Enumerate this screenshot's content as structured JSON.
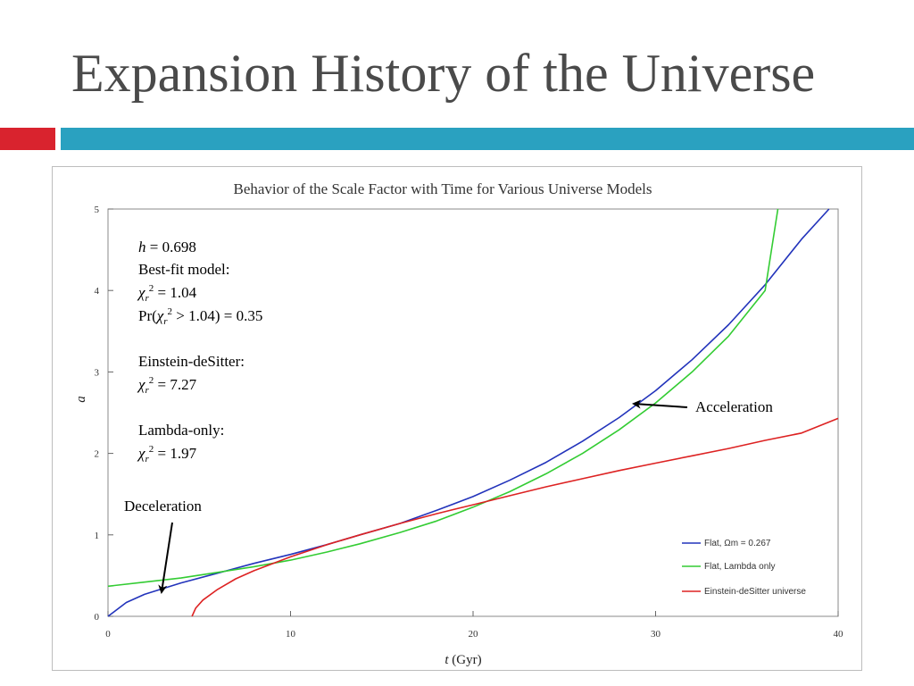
{
  "slide": {
    "title": "Expansion History of the Universe",
    "accent_red": "#d9232e",
    "accent_blue": "#2aa1c0"
  },
  "chart_data": {
    "type": "line",
    "title": "Behavior of the Scale Factor with Time for Various Universe Models",
    "xlabel_var": "t",
    "xlabel_unit": "(Gyr)",
    "ylabel": "a",
    "xlim": [
      0,
      40
    ],
    "ylim": [
      0,
      5
    ],
    "xticks": [
      0,
      10,
      20,
      30,
      40
    ],
    "yticks": [
      0,
      1,
      2,
      3,
      4,
      5
    ],
    "grid": false,
    "legend_position": "bottom-right",
    "series": [
      {
        "name": "Flat, Ωm = 0.267",
        "color": "#2233bb",
        "x": [
          0,
          1,
          2,
          3,
          4,
          6,
          8,
          10,
          12,
          13.8,
          16,
          18,
          20,
          22,
          24,
          26,
          28,
          30,
          32,
          34,
          36,
          38,
          39.5
        ],
        "y": [
          0,
          0.17,
          0.27,
          0.34,
          0.41,
          0.53,
          0.65,
          0.76,
          0.88,
          1.0,
          1.14,
          1.3,
          1.47,
          1.67,
          1.89,
          2.15,
          2.44,
          2.77,
          3.15,
          3.58,
          4.07,
          4.63,
          5.0
        ]
      },
      {
        "name": "Flat, Lambda only",
        "color": "#33cc33",
        "x": [
          0,
          2,
          4,
          6,
          8,
          10,
          12,
          13.8,
          16,
          18,
          20,
          22,
          24,
          26,
          28,
          30,
          32,
          34,
          36,
          36.7
        ],
        "y": [
          0.37,
          0.42,
          0.47,
          0.54,
          0.61,
          0.69,
          0.79,
          0.89,
          1.03,
          1.17,
          1.34,
          1.53,
          1.75,
          2.0,
          2.29,
          2.62,
          3.0,
          3.44,
          4.0,
          5.0
        ]
      },
      {
        "name": "Einstein-deSitter universe",
        "color": "#dd2222",
        "x": [
          4.6,
          4.8,
          5.2,
          6,
          7,
          8,
          10,
          12,
          13.8,
          16,
          18,
          20,
          22,
          24,
          26,
          28,
          30,
          32,
          34,
          36,
          38,
          40
        ],
        "y": [
          0,
          0.1,
          0.2,
          0.33,
          0.46,
          0.56,
          0.73,
          0.88,
          1.0,
          1.14,
          1.26,
          1.37,
          1.48,
          1.59,
          1.69,
          1.79,
          1.88,
          1.97,
          2.06,
          2.16,
          2.25,
          2.43
        ]
      }
    ],
    "annotations": {
      "h_label": "h",
      "h_value": "= 0.698",
      "best_fit": "Best-fit model:",
      "best_fit_chi": "= 1.04",
      "pr_text": "Pr(",
      "pr_rest": "> 1.04) = 0.35",
      "eds_label": "Einstein-deSitter:",
      "eds_chi": "= 7.27",
      "lambda_label": "Lambda-only:",
      "lambda_chi": "= 1.97",
      "chi": "χ",
      "sub_r": "r",
      "sup_2": "2",
      "acceleration": "Acceleration",
      "deceleration": "Deceleration"
    }
  }
}
